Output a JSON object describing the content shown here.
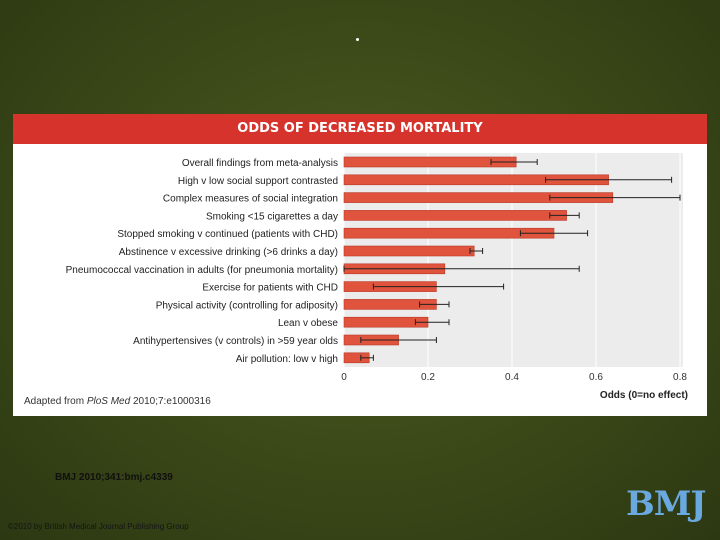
{
  "slide": {
    "citation": "BMJ 2010;341:bmj.c4339",
    "copyright": "©2010 by British Medical Journal Publishing Group",
    "logo_text": "BMJ",
    "marker": "."
  },
  "figure": {
    "source_prefix": "Adapted from ",
    "source_journal": "PloS Med",
    "source_ref": " 2010;7:e1000316"
  },
  "colors": {
    "header": "#d5332b",
    "bar": "#e0533c",
    "bar_stroke": "#b83a28",
    "error_bar": "#222222",
    "panel": "#ececec"
  },
  "chart_data": {
    "type": "bar",
    "orientation": "horizontal",
    "title": "ODDS OF DECREASED MORTALITY",
    "xlabel": "Odds (0=no effect)",
    "ylabel": "",
    "xlim": [
      0,
      0.8
    ],
    "xticks": [
      0,
      0.2,
      0.4,
      0.6,
      0.8
    ],
    "xtick_labels": [
      "0",
      "0.2",
      "0.4",
      "0.6",
      "0.8"
    ],
    "grid": true,
    "categories": [
      "Overall findings from meta-analysis",
      "High v low social support contrasted",
      "Complex measures of social integration",
      "Smoking <15 cigarettes a day",
      "Stopped smoking v continued (patients with CHD)",
      "Abstinence v excessive drinking (>6 drinks a day)",
      "Pneumococcal vaccination in adults (for pneumonia mortality)",
      "Exercise for patients with CHD",
      "Physical activity (controlling for adiposity)",
      "Lean v obese",
      "Antihypertensives (v controls) in >59 year olds",
      "Air pollution: low v high"
    ],
    "values": [
      0.41,
      0.63,
      0.64,
      0.53,
      0.5,
      0.31,
      0.24,
      0.22,
      0.22,
      0.2,
      0.13,
      0.06
    ],
    "ci_low": [
      0.35,
      0.48,
      0.49,
      0.49,
      0.42,
      0.3,
      0.0,
      0.07,
      0.18,
      0.17,
      0.04,
      0.04
    ],
    "ci_high": [
      0.46,
      0.78,
      0.8,
      0.56,
      0.58,
      0.33,
      0.56,
      0.38,
      0.25,
      0.25,
      0.22,
      0.07
    ]
  }
}
